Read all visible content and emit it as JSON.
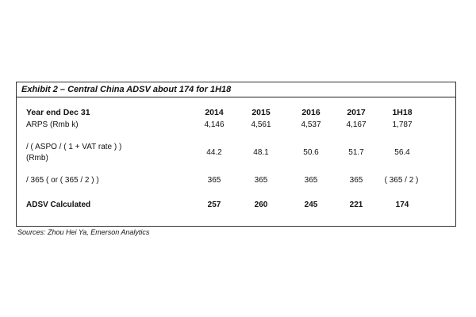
{
  "exhibit": {
    "title": "Exhibit 2 – Central China ADSV about 174 for 1H18",
    "header_label": "Year end Dec 31",
    "columns": [
      "2014",
      "2015",
      "2016",
      "2017",
      "1H18"
    ],
    "rows": [
      {
        "label_1": "ARPS (Rmb k)",
        "label_2": "",
        "values": [
          "4,146",
          "4,561",
          "4,537",
          "4,167",
          "1,787"
        ],
        "bold": false
      },
      {
        "label_1": "/ ( ASPO / ( 1 + VAT rate ) )",
        "label_2": "(Rmb)",
        "values": [
          "44.2",
          "48.1",
          "50.6",
          "51.7",
          "56.4"
        ],
        "bold": false
      },
      {
        "label_1": "/ 365 ( or ( 365 / 2 ) )",
        "label_2": "",
        "values": [
          "365",
          "365",
          "365",
          "365",
          "( 365 / 2 )"
        ],
        "bold": false
      },
      {
        "label_1": "ADSV Calculated",
        "label_2": "",
        "values": [
          "257",
          "260",
          "245",
          "221",
          "174"
        ],
        "bold": true
      }
    ],
    "source": "Sources: Zhou Hei Ya, Emerson Analytics"
  }
}
